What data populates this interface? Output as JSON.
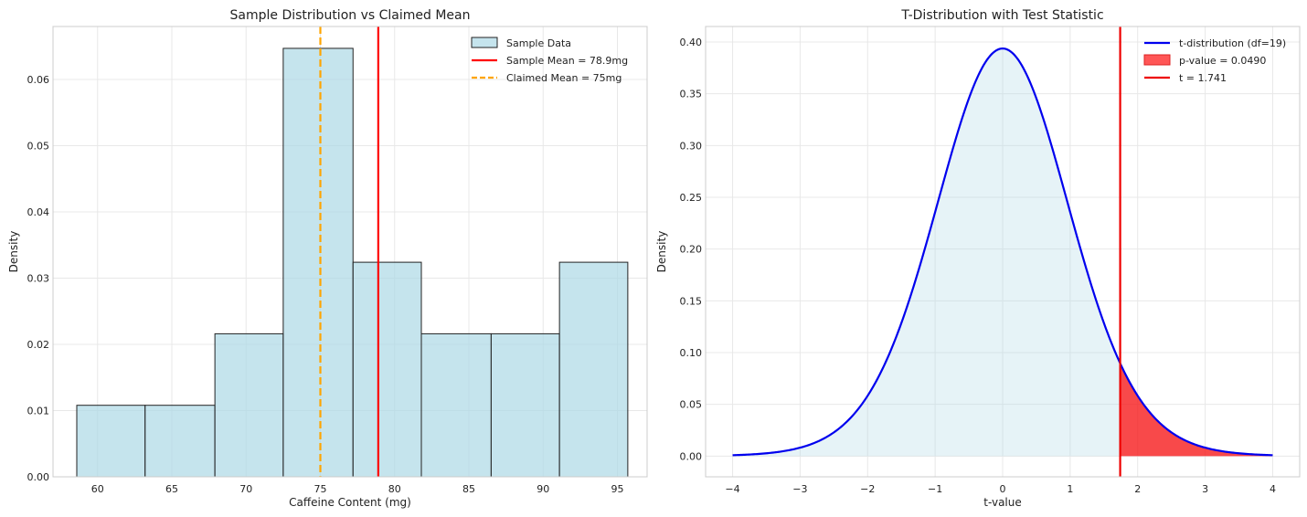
{
  "chart_data": [
    {
      "type": "bar",
      "title": "Sample Distribution vs Claimed Mean",
      "xlabel": "Caffeine Content (mg)",
      "ylabel": "Density",
      "xlim": [
        57,
        97
      ],
      "ylim": [
        0,
        0.068
      ],
      "xticks": [
        60,
        65,
        70,
        75,
        80,
        85,
        90,
        95
      ],
      "yticks": [
        0.0,
        0.01,
        0.02,
        0.03,
        0.04,
        0.05,
        0.06
      ],
      "ytick_labels": [
        "0.00",
        "0.01",
        "0.02",
        "0.03",
        "0.04",
        "0.05",
        "0.06"
      ],
      "grid": true,
      "legend_position": "top-right",
      "bins": [
        {
          "x0": 58.6,
          "x1": 63.2,
          "value": 0.0108
        },
        {
          "x0": 63.2,
          "x1": 67.9,
          "value": 0.0108
        },
        {
          "x0": 67.9,
          "x1": 72.5,
          "value": 0.0216
        },
        {
          "x0": 72.5,
          "x1": 77.2,
          "value": 0.0647
        },
        {
          "x0": 77.2,
          "x1": 81.8,
          "value": 0.0324
        },
        {
          "x0": 81.8,
          "x1": 86.5,
          "value": 0.0216
        },
        {
          "x0": 86.5,
          "x1": 91.1,
          "value": 0.0216
        },
        {
          "x0": 91.1,
          "x1": 95.7,
          "value": 0.0324
        }
      ],
      "vlines": [
        {
          "name": "sample-mean",
          "x": 78.9,
          "color": "#ff0000",
          "style": "solid"
        },
        {
          "name": "claimed-mean",
          "x": 75,
          "color": "#ffa500",
          "style": "dashed"
        }
      ],
      "colors": {
        "bar_fill": "#add8e6",
        "bar_edge": "#222222"
      },
      "legend": [
        {
          "label": "Sample Data",
          "kind": "patch",
          "color": "#add8e6"
        },
        {
          "label": "Sample Mean = 78.9mg",
          "kind": "line",
          "color": "#ff0000",
          "style": "solid"
        },
        {
          "label": "Claimed Mean = 75mg",
          "kind": "line",
          "color": "#ffa500",
          "style": "dashed"
        }
      ]
    },
    {
      "type": "line",
      "title": "T-Distribution with Test Statistic",
      "xlabel": "t-value",
      "ylabel": "Density",
      "xlim": [
        -4.4,
        4.4
      ],
      "ylim": [
        -0.02,
        0.415
      ],
      "xticks": [
        -4,
        -3,
        -2,
        -1,
        0,
        1,
        2,
        3,
        4
      ],
      "xtick_labels": [
        "−4",
        "−3",
        "−2",
        "−1",
        "0",
        "1",
        "2",
        "3",
        "4"
      ],
      "yticks": [
        0.0,
        0.05,
        0.1,
        0.15,
        0.2,
        0.25,
        0.3,
        0.35,
        0.4
      ],
      "ytick_labels": [
        "0.00",
        "0.05",
        "0.10",
        "0.15",
        "0.20",
        "0.25",
        "0.30",
        "0.35",
        "0.40"
      ],
      "grid": true,
      "legend_position": "top-right",
      "df": 19,
      "x_range": [
        -4,
        4
      ],
      "t_statistic": 1.741,
      "p_value": 0.049,
      "colors": {
        "curve": "#0000ee",
        "fill": "#add8e6",
        "tail": "#ff0000",
        "tline": "#ee0000"
      },
      "legend": [
        {
          "label": "t-distribution (df=19)",
          "kind": "line",
          "color": "#0000ee"
        },
        {
          "label": "p-value = 0.0490",
          "kind": "patch",
          "color": "#ff4444"
        },
        {
          "label": "t = 1.741",
          "kind": "line",
          "color": "#ee0000"
        }
      ]
    }
  ]
}
